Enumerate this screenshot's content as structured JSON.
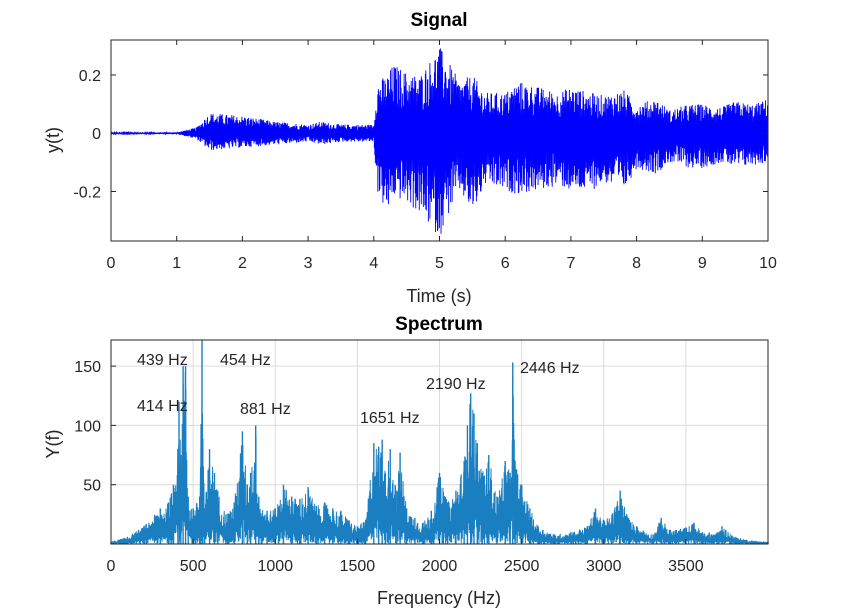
{
  "chart_data": [
    {
      "type": "line",
      "title": "Signal",
      "xlabel": "Time (s)",
      "ylabel": "y(t)",
      "xlim": [
        0,
        10
      ],
      "ylim": [
        -0.37,
        0.32
      ],
      "xticks": [
        "0",
        "1",
        "2",
        "3",
        "4",
        "5",
        "6",
        "7",
        "8",
        "9",
        "10"
      ],
      "yticks": [
        "0.2",
        "0",
        "-0.2"
      ],
      "grid": false,
      "color": "#0000ff",
      "series": [
        {
          "x": [
            0,
            1,
            1.3,
            1.5,
            2.0,
            2.5,
            3.0,
            3.2,
            3.5,
            4.0,
            4.05,
            4.2,
            4.3,
            4.5,
            4.7,
            5.0,
            5.1,
            5.3,
            5.5,
            5.7,
            6.0,
            6.2,
            6.5,
            6.8,
            7.0,
            7.3,
            7.5,
            7.8,
            8.0,
            8.3,
            8.5,
            8.8,
            9.0,
            9.3,
            9.5,
            9.8,
            10
          ],
          "y_upper": [
            0.002,
            0.003,
            0.02,
            0.07,
            0.06,
            0.04,
            0.03,
            0.04,
            0.03,
            0.03,
            0.18,
            0.2,
            0.24,
            0.21,
            0.2,
            0.3,
            0.26,
            0.18,
            0.2,
            0.14,
            0.14,
            0.18,
            0.16,
            0.14,
            0.16,
            0.14,
            0.13,
            0.15,
            0.1,
            0.12,
            0.08,
            0.1,
            0.1,
            0.09,
            0.11,
            0.1,
            0.12
          ],
          "y_lower": [
            -0.002,
            -0.003,
            -0.02,
            -0.06,
            -0.05,
            -0.04,
            -0.03,
            -0.04,
            -0.03,
            -0.03,
            -0.2,
            -0.28,
            -0.22,
            -0.24,
            -0.28,
            -0.36,
            -0.3,
            -0.2,
            -0.28,
            -0.18,
            -0.2,
            -0.21,
            -0.2,
            -0.18,
            -0.2,
            -0.2,
            -0.17,
            -0.2,
            -0.12,
            -0.14,
            -0.1,
            -0.12,
            -0.12,
            -0.1,
            -0.12,
            -0.11,
            -0.1
          ]
        }
      ]
    },
    {
      "type": "line",
      "title": "Spectrum",
      "xlabel": "Frequency (Hz)",
      "ylabel": "Y(f)",
      "xlim": [
        0,
        4000
      ],
      "ylim": [
        0,
        172
      ],
      "xticks": [
        "0",
        "500",
        "1000",
        "1500",
        "2000",
        "2500",
        "3000",
        "3500"
      ],
      "yticks": [
        "150",
        "100",
        "50"
      ],
      "grid": true,
      "color": "#1a7fc1",
      "series": [
        {
          "x": [
            0,
            100,
            200,
            300,
            350,
            380,
            414,
            425,
            439,
            454,
            470,
            500,
            540,
            554,
            570,
            600,
            630,
            650,
            700,
            750,
            800,
            830,
            850,
            881,
            900,
            950,
            1000,
            1050,
            1100,
            1150,
            1200,
            1250,
            1300,
            1350,
            1400,
            1450,
            1500,
            1550,
            1600,
            1630,
            1651,
            1670,
            1700,
            1740,
            1760,
            1800,
            1850,
            1900,
            1950,
            2000,
            2050,
            2100,
            2150,
            2170,
            2190,
            2210,
            2230,
            2260,
            2300,
            2350,
            2400,
            2430,
            2446,
            2460,
            2500,
            2550,
            2600,
            2700,
            2800,
            2900,
            2950,
            3000,
            3050,
            3100,
            3150,
            3200,
            3300,
            3350,
            3400,
            3500,
            3550,
            3600,
            3700,
            3720,
            3800,
            3900,
            4000
          ],
          "y": [
            2,
            6,
            15,
            30,
            35,
            50,
            120,
            75,
            150,
            150,
            40,
            30,
            40,
            172,
            30,
            80,
            60,
            45,
            25,
            35,
            95,
            50,
            60,
            100,
            40,
            28,
            30,
            50,
            40,
            38,
            48,
            32,
            35,
            30,
            28,
            20,
            15,
            20,
            85,
            82,
            88,
            60,
            80,
            45,
            77,
            30,
            22,
            18,
            28,
            60,
            35,
            45,
            70,
            100,
            127,
            110,
            85,
            60,
            75,
            40,
            70,
            60,
            153,
            70,
            50,
            30,
            15,
            8,
            10,
            15,
            30,
            20,
            25,
            45,
            22,
            15,
            8,
            22,
            12,
            14,
            18,
            10,
            10,
            15,
            6,
            3,
            2
          ]
        }
      ],
      "annotations": [
        "439 Hz",
        "454 Hz",
        "414 Hz",
        "881 Hz",
        "1651 Hz",
        "2190 Hz",
        "2446 Hz"
      ]
    }
  ]
}
